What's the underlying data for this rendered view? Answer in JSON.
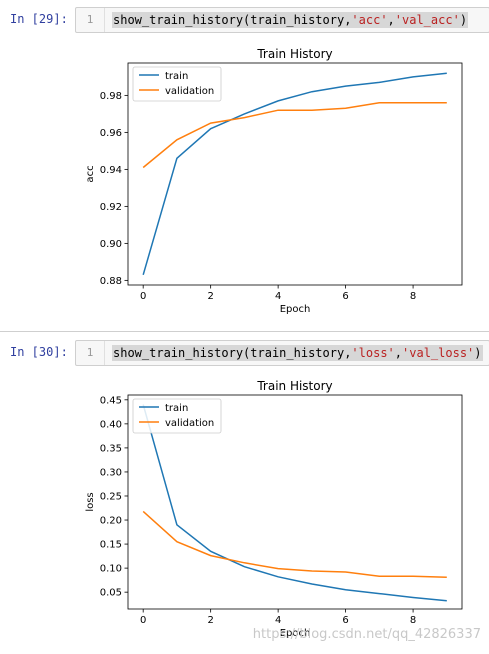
{
  "cells": [
    {
      "prompt": "In [29]:",
      "line_number": "1",
      "code": {
        "func": "show_train_history(train_history,",
        "arg1": "'acc'",
        "sep": ",",
        "arg2": "'val_acc'",
        "close": ")"
      }
    },
    {
      "prompt": "In [30]:",
      "line_number": "1",
      "code": {
        "func": "show_train_history(train_history,",
        "arg1": "'loss'",
        "sep": ",",
        "arg2": "'val_loss'",
        "close": ")"
      }
    }
  ],
  "chart_data": [
    {
      "type": "line",
      "title": "Train History",
      "xlabel": "Epoch",
      "ylabel": "acc",
      "x": [
        0,
        1,
        2,
        3,
        4,
        5,
        6,
        7,
        8,
        9
      ],
      "xticks": [
        "0",
        "2",
        "4",
        "6",
        "8"
      ],
      "yticks": [
        "0.88",
        "0.90",
        "0.92",
        "0.94",
        "0.96",
        "0.98"
      ],
      "ylim": [
        0.8775,
        0.9975
      ],
      "xlim": [
        -0.45,
        9.45
      ],
      "legend_position": "upper-left",
      "series": [
        {
          "name": "train",
          "color": "#1f77b4",
          "values": [
            0.883,
            0.946,
            0.962,
            0.97,
            0.977,
            0.982,
            0.985,
            0.987,
            0.99,
            0.992
          ]
        },
        {
          "name": "validation",
          "color": "#ff7f0e",
          "values": [
            0.941,
            0.956,
            0.965,
            0.968,
            0.972,
            0.972,
            0.973,
            0.976,
            0.976,
            0.976
          ]
        }
      ]
    },
    {
      "type": "line",
      "title": "Train History",
      "xlabel": "Epoch",
      "ylabel": "loss",
      "x": [
        0,
        1,
        2,
        3,
        4,
        5,
        6,
        7,
        8,
        9
      ],
      "xticks": [
        "0",
        "2",
        "4",
        "6",
        "8"
      ],
      "yticks": [
        "0.05",
        "0.10",
        "0.15",
        "0.20",
        "0.25",
        "0.30",
        "0.35",
        "0.40",
        "0.45"
      ],
      "ylim": [
        0.015,
        0.46
      ],
      "xlim": [
        -0.45,
        9.45
      ],
      "legend_position": "upper-left",
      "series": [
        {
          "name": "train",
          "color": "#1f77b4",
          "values": [
            0.44,
            0.19,
            0.135,
            0.103,
            0.082,
            0.067,
            0.055,
            0.047,
            0.039,
            0.032
          ]
        },
        {
          "name": "validation",
          "color": "#ff7f0e",
          "values": [
            0.218,
            0.155,
            0.126,
            0.111,
            0.099,
            0.094,
            0.092,
            0.083,
            0.083,
            0.081
          ]
        }
      ]
    }
  ],
  "watermark": "https://blog.csdn.net/qq_42826337"
}
